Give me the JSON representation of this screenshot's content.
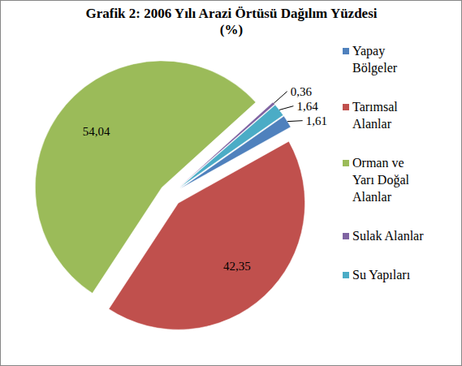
{
  "chart_data": {
    "type": "pie",
    "title": "Grafik 2: 2006 Yılı Arazi Örtüsü Dağılım Yüzdesi (%)",
    "categories": [
      "Yapay Bölgeler",
      "Tarımsal Alanlar",
      "Orman ve Yarı Doğal Alanlar",
      "Sulak Alanlar",
      "Su Yapıları"
    ],
    "values": [
      1.61,
      42.35,
      54.04,
      0.36,
      1.64
    ],
    "value_labels": [
      "1,61",
      "42,35",
      "54,04",
      "0,36",
      "1,64"
    ],
    "colors": [
      "#4F81BD",
      "#C0504D",
      "#9BBB59",
      "#8064A2",
      "#4BACC6"
    ],
    "data_labels": true,
    "legend": "right"
  }
}
